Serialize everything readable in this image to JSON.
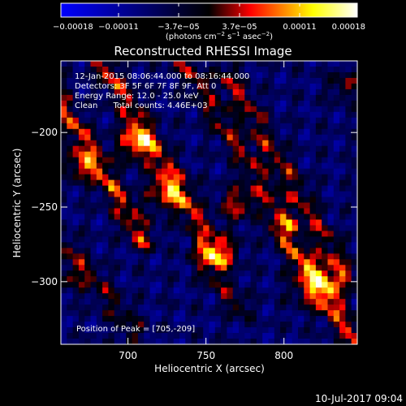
{
  "chart_data": {
    "type": "heatmap",
    "title": "Reconstructed RHESSI Image",
    "xlabel": "Heliocentric X (arcsec)",
    "ylabel": "Heliocentric Y (arcsec)",
    "xlim": [
      657,
      847
    ],
    "ylim": [
      -342,
      -152
    ],
    "x_ticks": [
      700,
      750,
      800
    ],
    "x_tick_labels": [
      "700",
      "750",
      "800"
    ],
    "y_ticks": [
      -200,
      -250,
      -300
    ],
    "y_tick_labels": [
      "−200",
      "−250",
      "−300"
    ],
    "colorbar": {
      "range": [
        -0.00018,
        0.00018
      ],
      "ticks": [
        -0.00018,
        -0.00011,
        -3.7e-05,
        3.7e-05,
        0.00011,
        0.00018
      ],
      "tick_labels": [
        "−0.00018",
        "−0.00011",
        "−3.7e−05",
        "3.7e−05",
        "0.00011",
        "0.00018"
      ],
      "unit_main": "(photons cm",
      "unit_exp1": "−2",
      "unit_mid": " s",
      "unit_exp2": "−1",
      "unit_mid2": " asec",
      "unit_exp3": "−2",
      "unit_end": ")",
      "colors": [
        "#0000ff",
        "#000000",
        "#ff0000",
        "#ffff00",
        "#ffffff"
      ]
    },
    "annotations": {
      "line1": "12-Jan-2015 08:06:44.000 to 08:16:44.000",
      "line2": "Detectors: 3F 5F 6F 7F 8F 9F, Att 0",
      "line3": "Energy Range: 12.0 - 25.0 keV",
      "line4": "Clean      Total counts: 4.46E+03",
      "peak": "Position of Peak = [705,-209]"
    },
    "peak": [
      705,
      -209
    ],
    "ridges": [
      {
        "x0": 640,
        "y0": -152,
        "x1": 710,
        "y1": -272,
        "amp": 0.00015
      },
      {
        "x0": 683,
        "y0": -152,
        "x1": 757,
        "y1": -283,
        "amp": 0.00014
      },
      {
        "x0": 735,
        "y0": -152,
        "x1": 802,
        "y1": -262,
        "amp": 0.00011
      },
      {
        "x0": 763,
        "y0": -160,
        "x1": 840,
        "y1": -296,
        "amp": 0.000115
      },
      {
        "x0": 660,
        "y0": -275,
        "x1": 705,
        "y1": -335,
        "amp": 9e-05
      },
      {
        "x0": 798,
        "y0": -265,
        "x1": 848,
        "y1": -342,
        "amp": 0.00015
      },
      {
        "x0": 746,
        "y0": -283,
        "x1": 772,
        "y1": -318,
        "amp": 9e-05
      }
    ],
    "blobs": [
      {
        "x": 705,
        "y": -207,
        "amp": 0.00018,
        "r": 8
      },
      {
        "x": 725,
        "y": -240,
        "amp": 0.00014,
        "r": 9
      },
      {
        "x": 770,
        "y": -248,
        "amp": 0.00013,
        "r": 8
      },
      {
        "x": 670,
        "y": -222,
        "amp": 0.00012,
        "r": 8
      },
      {
        "x": 822,
        "y": -302,
        "amp": 0.00015,
        "r": 11
      },
      {
        "x": 760,
        "y": -280,
        "amp": 0.00012,
        "r": 8
      },
      {
        "x": 663,
        "y": -298,
        "amp": 8e-05,
        "r": 7
      },
      {
        "x": 839,
        "y": -168,
        "amp": 9e-05,
        "r": 7
      }
    ]
  },
  "footer": {
    "timestamp": "10-Jul-2017 09:04"
  }
}
